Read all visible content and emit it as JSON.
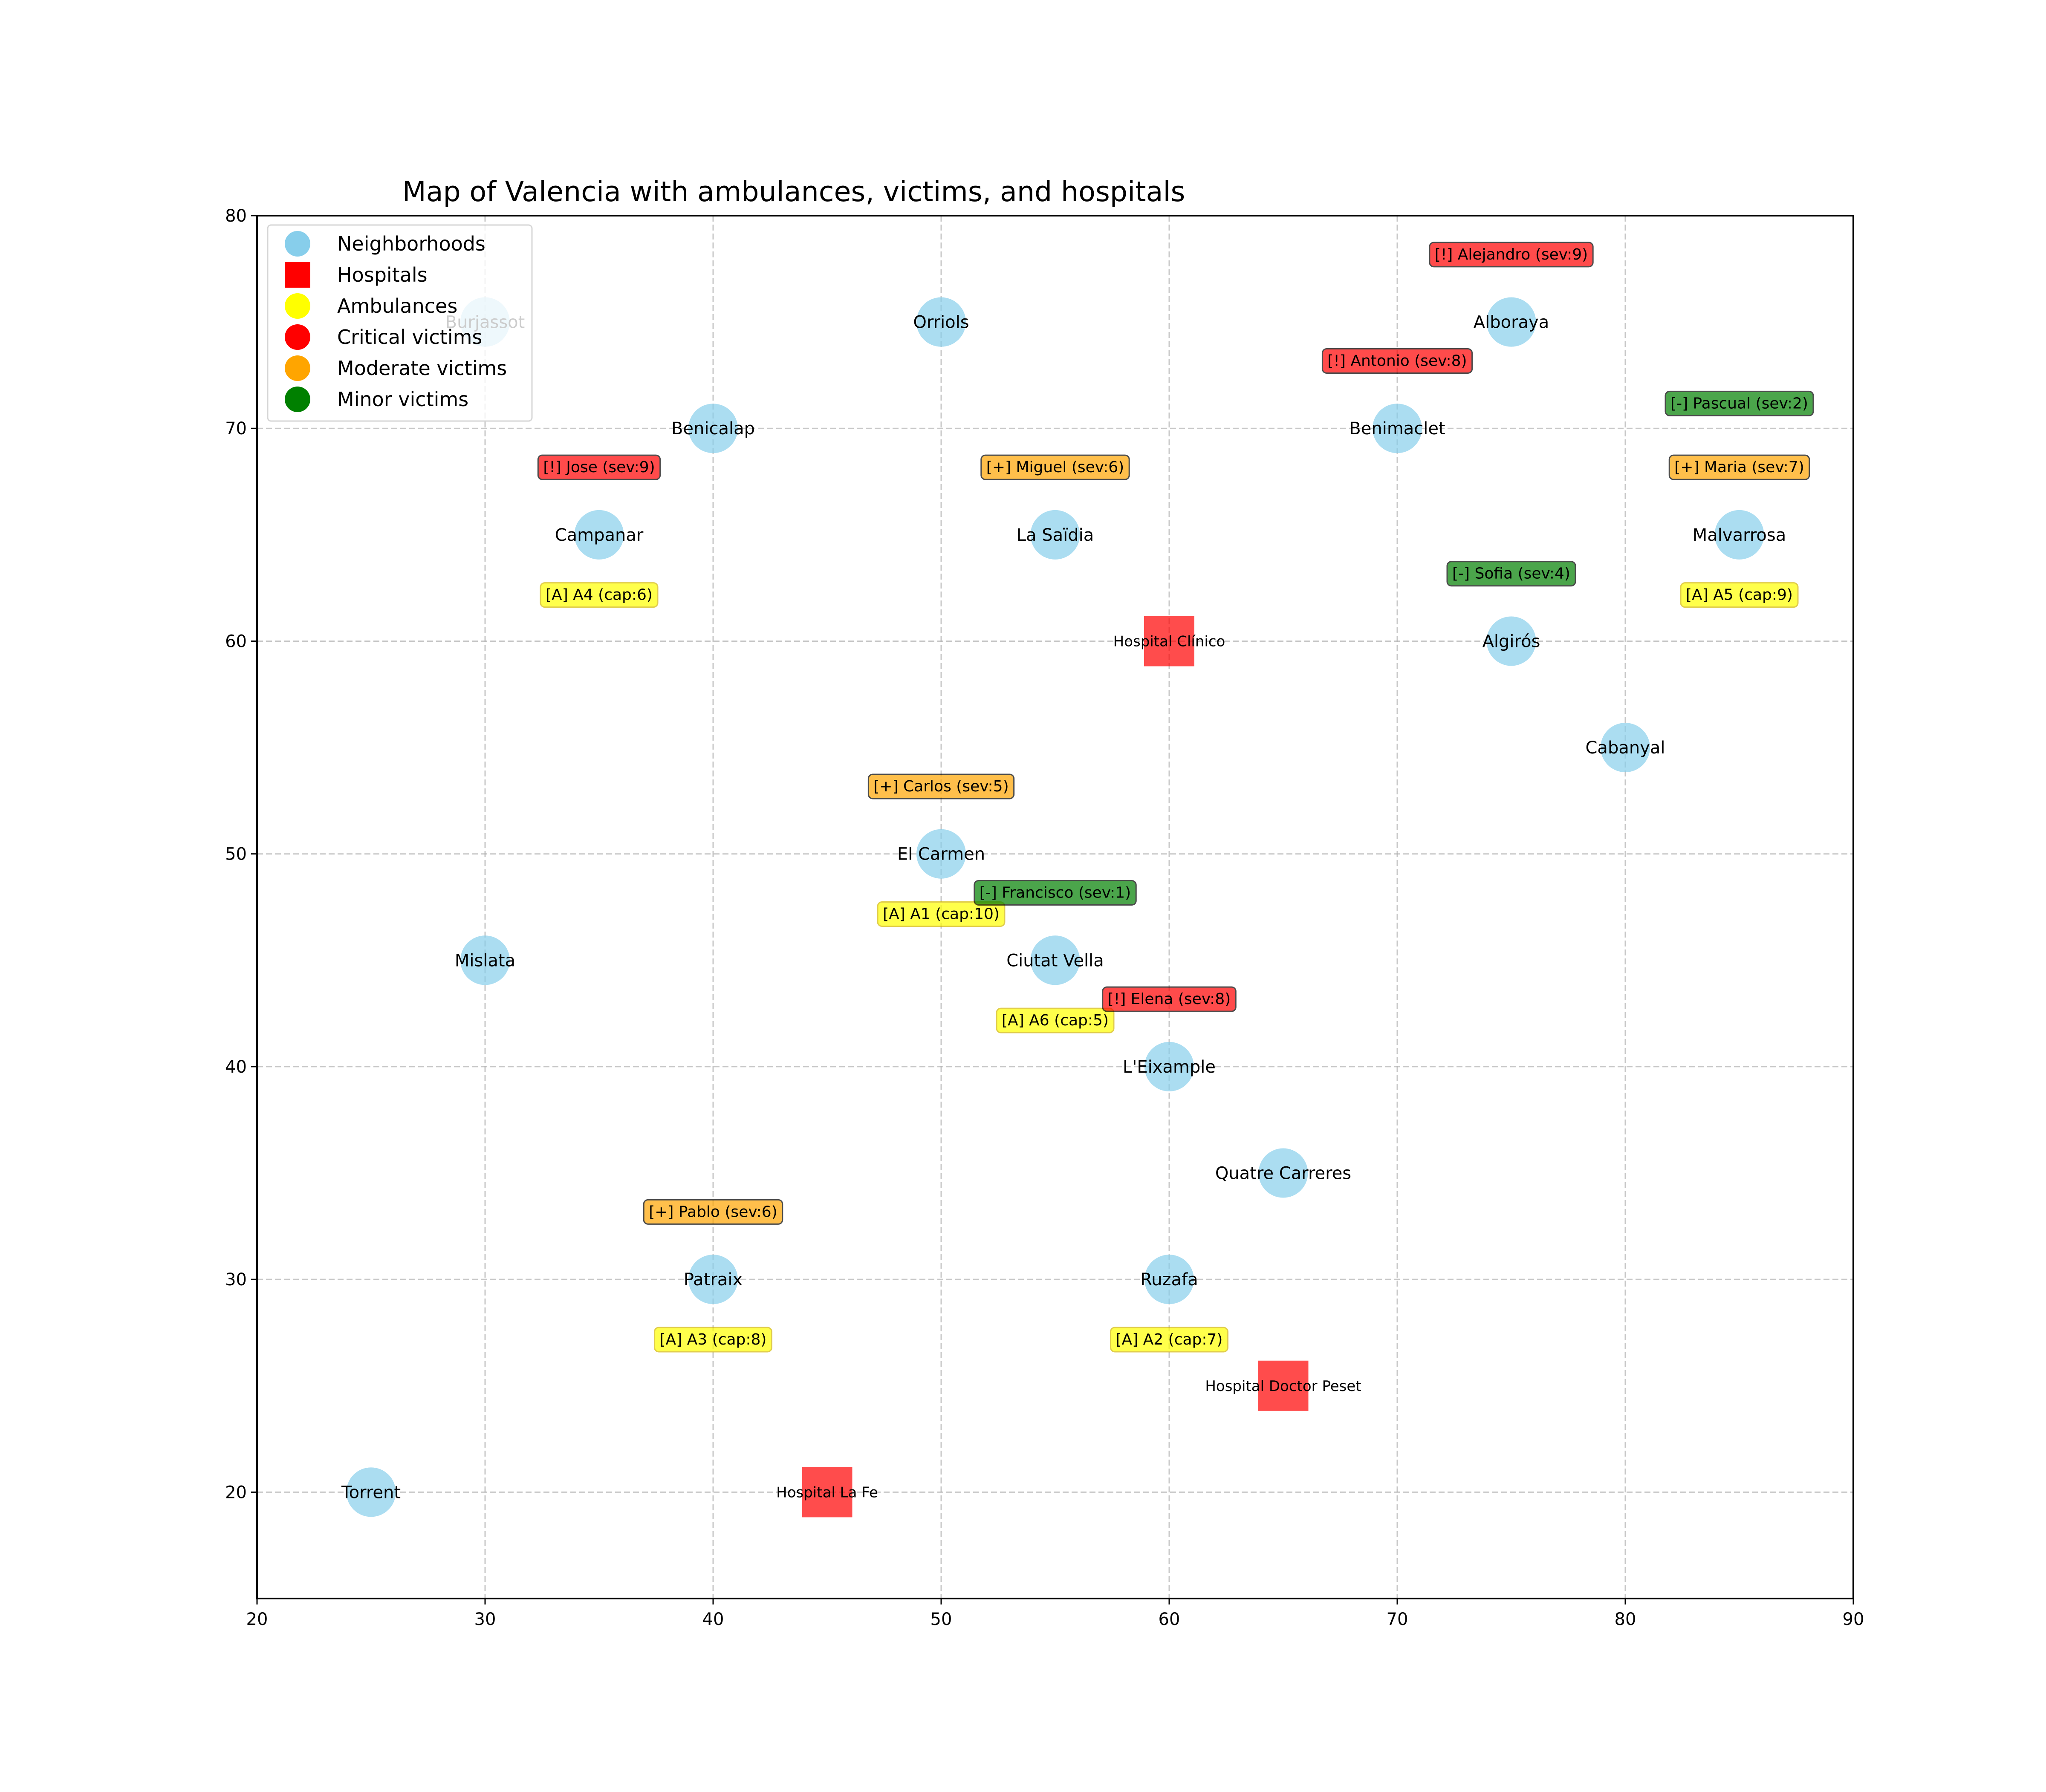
{
  "chart_data": {
    "type": "scatter",
    "title": "Map of Valencia with ambulances, victims, and hospitals",
    "xlabel": "",
    "ylabel": "",
    "xlim": [
      20,
      90
    ],
    "ylim": [
      15,
      80
    ],
    "xticks": [
      20,
      30,
      40,
      50,
      60,
      70,
      80,
      90
    ],
    "yticks": [
      20,
      30,
      40,
      50,
      60,
      70,
      80
    ],
    "grid": true,
    "legend_position": "upper-left",
    "legend": [
      {
        "label": "Neighborhoods",
        "marker": "circle",
        "color": "#87CEEB"
      },
      {
        "label": "Hospitals",
        "marker": "square",
        "color": "#FF0000"
      },
      {
        "label": "Ambulances",
        "marker": "circle",
        "color": "#FFFF00"
      },
      {
        "label": "Critical victims",
        "marker": "circle",
        "color": "#FF0000"
      },
      {
        "label": "Moderate victims",
        "marker": "circle",
        "color": "#FFA500"
      },
      {
        "label": "Minor victims",
        "marker": "circle",
        "color": "#008000"
      }
    ],
    "colors": {
      "neighborhood": "#87CEEB",
      "hospital": "#FF0000",
      "ambulance": "#FFFF00",
      "critical": "#FF0000",
      "moderate": "#FFA500",
      "minor": "#008000"
    },
    "neighborhoods": [
      {
        "name": "Burjassot",
        "x": 30,
        "y": 75
      },
      {
        "name": "Orriols",
        "x": 50,
        "y": 75
      },
      {
        "name": "Alboraya",
        "x": 75,
        "y": 75
      },
      {
        "name": "Benicalap",
        "x": 40,
        "y": 70
      },
      {
        "name": "Benimaclet",
        "x": 70,
        "y": 70
      },
      {
        "name": "Campanar",
        "x": 35,
        "y": 65
      },
      {
        "name": "La Saïdia",
        "x": 55,
        "y": 65
      },
      {
        "name": "Malvarrosa",
        "x": 85,
        "y": 65
      },
      {
        "name": "Algirós",
        "x": 75,
        "y": 60
      },
      {
        "name": "Cabanyal",
        "x": 80,
        "y": 55
      },
      {
        "name": "El Carmen",
        "x": 50,
        "y": 50
      },
      {
        "name": "Mislata",
        "x": 30,
        "y": 45
      },
      {
        "name": "Ciutat Vella",
        "x": 55,
        "y": 45
      },
      {
        "name": "L'Eixample",
        "x": 60,
        "y": 40
      },
      {
        "name": "Quatre Carreres",
        "x": 65,
        "y": 35
      },
      {
        "name": "Patraix",
        "x": 40,
        "y": 30
      },
      {
        "name": "Ruzafa",
        "x": 60,
        "y": 30
      },
      {
        "name": "Torrent",
        "x": 25,
        "y": 20
      }
    ],
    "hospitals": [
      {
        "name": "Hospital Clínico",
        "x": 60,
        "y": 60
      },
      {
        "name": "Hospital Doctor Peset",
        "x": 65,
        "y": 25
      },
      {
        "name": "Hospital La Fe",
        "x": 45,
        "y": 20
      }
    ],
    "ambulances": [
      {
        "label": "[A] A4 (cap:6)",
        "x": 35,
        "y": 62.2
      },
      {
        "label": "[A] A5 (cap:9)",
        "x": 85,
        "y": 62.2
      },
      {
        "label": "[A] A1 (cap:10)",
        "x": 50,
        "y": 47.2
      },
      {
        "label": "[A] A6 (cap:5)",
        "x": 55,
        "y": 42.2
      },
      {
        "label": "[A] A3 (cap:8)",
        "x": 40,
        "y": 27.2
      },
      {
        "label": "[A] A2 (cap:7)",
        "x": 60,
        "y": 27.2
      }
    ],
    "victims": [
      {
        "label": "[!] Alejandro (sev:9)",
        "severity": "critical",
        "x": 75,
        "y": 78.2
      },
      {
        "label": "[!] Antonio (sev:8)",
        "severity": "critical",
        "x": 70,
        "y": 73.2
      },
      {
        "label": "[-] Pascual (sev:2)",
        "severity": "minor",
        "x": 85,
        "y": 71.2
      },
      {
        "label": "[!] Jose (sev:9)",
        "severity": "critical",
        "x": 35,
        "y": 68.2
      },
      {
        "label": "[+] Miguel (sev:6)",
        "severity": "moderate",
        "x": 55,
        "y": 68.2
      },
      {
        "label": "[+] Maria (sev:7)",
        "severity": "moderate",
        "x": 85,
        "y": 68.2
      },
      {
        "label": "[-] Sofia (sev:4)",
        "severity": "minor",
        "x": 75,
        "y": 63.2
      },
      {
        "label": "[+] Carlos (sev:5)",
        "severity": "moderate",
        "x": 50,
        "y": 53.2
      },
      {
        "label": "[-] Francisco (sev:1)",
        "severity": "minor",
        "x": 55,
        "y": 48.2
      },
      {
        "label": "[!] Elena (sev:8)",
        "severity": "critical",
        "x": 60,
        "y": 43.2
      },
      {
        "label": "[+] Pablo (sev:6)",
        "severity": "moderate",
        "x": 40,
        "y": 33.2
      }
    ]
  }
}
